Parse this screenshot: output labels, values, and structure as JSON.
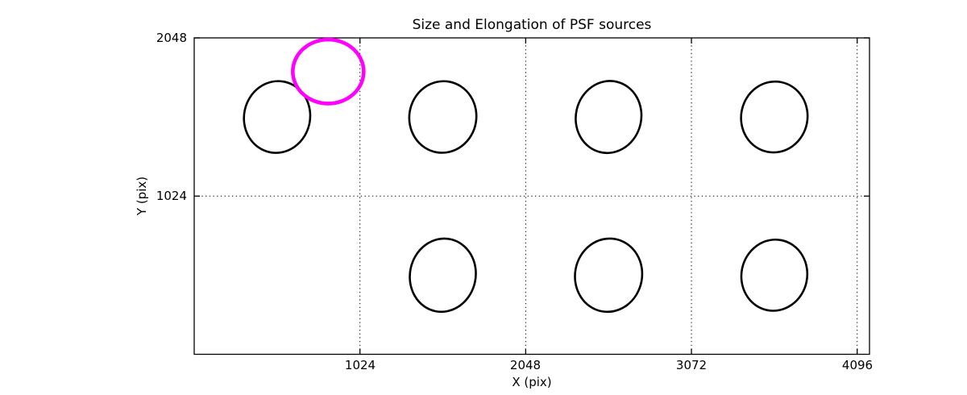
{
  "figure": {
    "background": "#ffffff"
  },
  "chart_data": {
    "type": "scatter",
    "subtype": "psf-ellipse-map",
    "title": "Size and Elongation of PSF sources",
    "xlabel": "X (pix)",
    "ylabel": "Y (pix)",
    "xlim": [
      0,
      4172
    ],
    "ylim": [
      0,
      2048
    ],
    "xticks": [
      1024,
      2048,
      3072,
      4096
    ],
    "yticks": [
      1024,
      2048
    ],
    "grid": {
      "visible": true,
      "style": "dotted",
      "color": "#000000"
    },
    "legend": "none",
    "colors": {
      "psf_outline": "#000000",
      "flagged_outline": "#ff00ff"
    },
    "ellipses": [
      {
        "name": "psf-ellipse-1",
        "x": 512,
        "y": 1536,
        "semi_x": 204,
        "semi_y": 233,
        "angle_deg": 12,
        "color": "#000000",
        "stroke_px": 2.6
      },
      {
        "name": "psf-ellipse-2",
        "x": 1536,
        "y": 1536,
        "semi_x": 207,
        "semi_y": 232,
        "angle_deg": 10,
        "color": "#000000",
        "stroke_px": 2.6
      },
      {
        "name": "psf-ellipse-3",
        "x": 2560,
        "y": 1536,
        "semi_x": 202,
        "semi_y": 234,
        "angle_deg": 13,
        "color": "#000000",
        "stroke_px": 2.6
      },
      {
        "name": "psf-ellipse-4",
        "x": 3584,
        "y": 1536,
        "semi_x": 205,
        "semi_y": 230,
        "angle_deg": 11,
        "color": "#000000",
        "stroke_px": 2.6
      },
      {
        "name": "psf-ellipse-5",
        "x": 1536,
        "y": 512,
        "semi_x": 203,
        "semi_y": 238,
        "angle_deg": 12,
        "color": "#000000",
        "stroke_px": 2.6
      },
      {
        "name": "psf-ellipse-6",
        "x": 2560,
        "y": 512,
        "semi_x": 207,
        "semi_y": 238,
        "angle_deg": 11,
        "color": "#000000",
        "stroke_px": 2.6
      },
      {
        "name": "psf-ellipse-7",
        "x": 3584,
        "y": 512,
        "semi_x": 203,
        "semi_y": 231,
        "angle_deg": 12,
        "color": "#000000",
        "stroke_px": 2.6
      },
      {
        "name": "flagged-psf-ellipse",
        "x": 828,
        "y": 1830,
        "semi_x": 219,
        "semi_y": 207,
        "angle_deg": 0,
        "color": "#ff00ff",
        "stroke_px": 4.6
      }
    ]
  }
}
